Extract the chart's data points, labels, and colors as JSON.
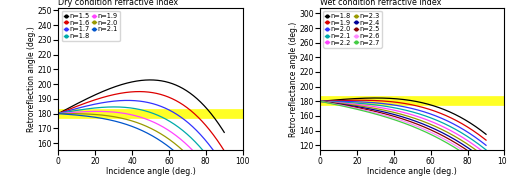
{
  "dry_n_values": [
    1.5,
    1.6,
    1.7,
    1.8,
    1.9,
    2.0,
    2.1
  ],
  "wet_n_values": [
    1.8,
    1.9,
    2.0,
    2.1,
    2.2,
    2.3,
    2.4,
    2.5,
    2.6,
    2.7
  ],
  "dry_colors": [
    "#000000",
    "#dd0000",
    "#3333ff",
    "#00aaaa",
    "#ff44ff",
    "#999900",
    "#0055cc"
  ],
  "wet_colors": [
    "#000000",
    "#dd0000",
    "#3333ff",
    "#00aaaa",
    "#ff44ff",
    "#999900",
    "#000099",
    "#880000",
    "#ff88ff",
    "#44cc44"
  ],
  "dry_title": "Dry condition refractive index",
  "wet_title": "Wet condition refractive index",
  "left_ylabel": "Retroreflection angle (deg.)",
  "right_ylabel": "Retro-reflectance angle (deg.)",
  "xlabel": "Incidence angle (deg.)",
  "dry_ylim": [
    155,
    252
  ],
  "wet_ylim": [
    113,
    308
  ],
  "dry_yticks": [
    160,
    170,
    180,
    190,
    200,
    210,
    220,
    230,
    240,
    250
  ],
  "wet_yticks": [
    120,
    140,
    160,
    180,
    200,
    220,
    240,
    260,
    280,
    300
  ],
  "xlim": [
    0,
    100
  ],
  "xticks": [
    0,
    20,
    40,
    60,
    80,
    100
  ],
  "hline_color": "#ffff00",
  "hline_alpha": 0.85,
  "hline_lw": 7,
  "dry_legend_order_col1": [
    0,
    2,
    4,
    6
  ],
  "dry_legend_order_col2": [
    1,
    3,
    5
  ],
  "wet_legend_order_col1": [
    0,
    2,
    4,
    6,
    8
  ],
  "wet_legend_order_col2": [
    1,
    3,
    5,
    7,
    9
  ],
  "figsize": [
    5.07,
    1.88
  ],
  "dpi": 100,
  "tick_labelsize": 5.5,
  "legend_fontsize": 4.8,
  "ylabel_fontsize": 5.5,
  "xlabel_fontsize": 5.8,
  "title_fontsize": 5.8
}
